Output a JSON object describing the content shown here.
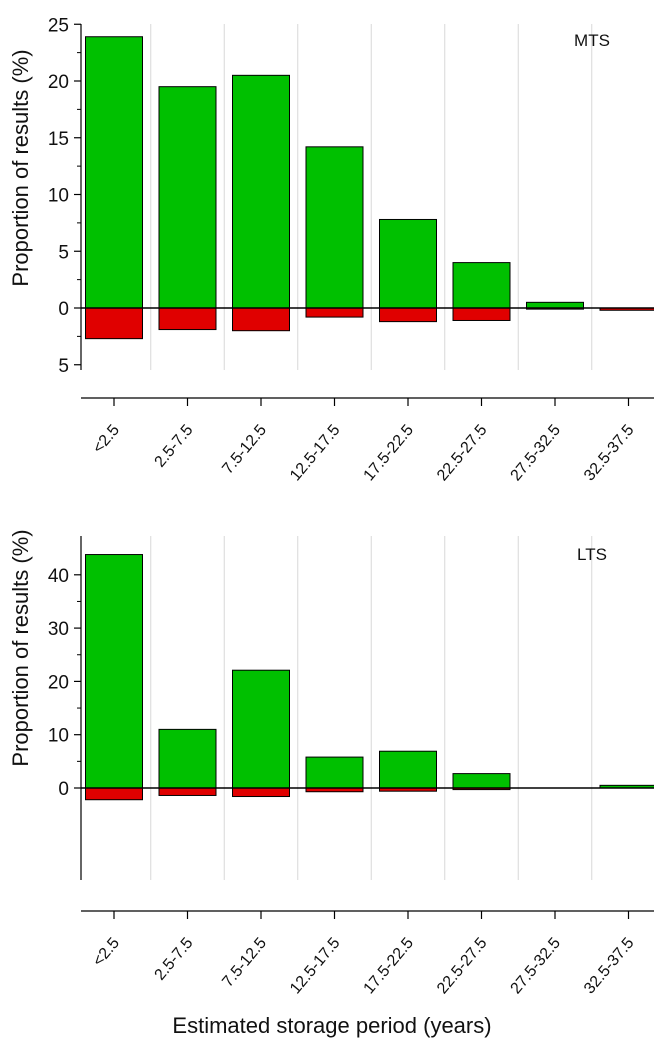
{
  "colors": {
    "positive_fill": "#00C000",
    "negative_fill": "#E00000",
    "bar_stroke": "#000000",
    "grid": "#D8D8D8",
    "axis": "#000000"
  },
  "figure": {
    "xlabel": "Estimated storage period (years)"
  },
  "chart_data": [
    {
      "type": "bar",
      "panel_label": "MTS",
      "ylabel": "Proportion of results (%)",
      "categories": [
        "<2.5",
        "2.5-7.5",
        "7.5-12.5",
        "12.5-17.5",
        "17.5-22.5",
        "22.5-27.5",
        "27.5-32.5",
        "32.5-37.5"
      ],
      "ylim": [
        -5,
        25
      ],
      "yticks": [
        -5,
        0,
        5,
        10,
        15,
        20,
        25
      ],
      "ytick_labels": [
        "5",
        "0",
        "5",
        "10",
        "15",
        "20",
        "25"
      ],
      "grid": "vertical",
      "series": [
        {
          "values": [
            23.9,
            19.5,
            20.5,
            14.2,
            7.8,
            4.0,
            0.5,
            0.0
          ]
        },
        {
          "values": [
            -2.7,
            -1.9,
            -2.0,
            -0.8,
            -1.2,
            -1.1,
            -0.1,
            -0.2
          ]
        }
      ]
    },
    {
      "type": "bar",
      "panel_label": "LTS",
      "ylabel": "Proportion of results (%)",
      "categories": [
        "<2.5",
        "2.5-7.5",
        "7.5-12.5",
        "12.5-17.5",
        "17.5-22.5",
        "22.5-27.5",
        "27.5-32.5",
        "32.5-37.5"
      ],
      "ylim": [
        -5,
        45
      ],
      "yticks": [
        0,
        10,
        20,
        30,
        40
      ],
      "ytick_labels": [
        "0",
        "10",
        "20",
        "30",
        "40"
      ],
      "grid": "vertical",
      "series": [
        {
          "values": [
            43.8,
            11.0,
            22.1,
            5.8,
            6.9,
            2.7,
            0.0,
            0.5
          ]
        },
        {
          "values": [
            -2.2,
            -1.4,
            -1.6,
            -0.7,
            -0.6,
            -0.3,
            0.0,
            0.0
          ]
        }
      ]
    }
  ]
}
